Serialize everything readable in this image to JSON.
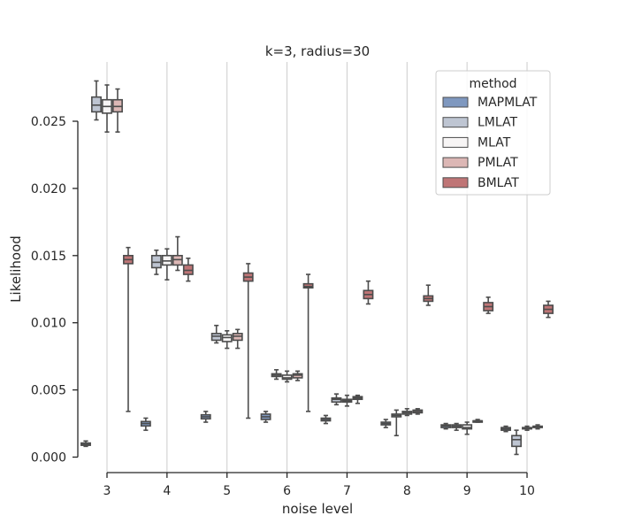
{
  "chart_data": {
    "type": "box",
    "title": "k=3, radius=30",
    "xlabel": "noise level",
    "ylabel": "Likelihood",
    "categories": [
      "3",
      "4",
      "5",
      "6",
      "7",
      "8",
      "9",
      "10"
    ],
    "y_ticks": [
      0.0,
      0.005,
      0.01,
      0.015,
      0.02,
      0.025
    ],
    "y_tick_labels": [
      "0.000",
      "0.005",
      "0.010",
      "0.015",
      "0.020",
      "0.025"
    ],
    "ylim": [
      -0.0012,
      0.0293
    ],
    "grid": "vertical",
    "legend": {
      "title": "method",
      "placement": "top-right"
    },
    "series": [
      {
        "name": "MAPMLAT",
        "color": "#7f98bf",
        "boxes": [
          {
            "min": 0.0008,
            "q1": 0.00088,
            "median": 0.00095,
            "q3": 0.00105,
            "max": 0.0012
          },
          {
            "min": 0.002,
            "q1": 0.00232,
            "median": 0.0025,
            "q3": 0.00265,
            "max": 0.0029
          },
          {
            "min": 0.0026,
            "q1": 0.00285,
            "median": 0.003,
            "q3": 0.00315,
            "max": 0.0034
          },
          {
            "min": 0.0026,
            "q1": 0.0028,
            "median": 0.003,
            "q3": 0.0032,
            "max": 0.0034
          },
          {
            "min": 0.0025,
            "q1": 0.0027,
            "median": 0.0028,
            "q3": 0.0029,
            "max": 0.0031
          },
          {
            "min": 0.0022,
            "q1": 0.0024,
            "median": 0.0025,
            "q3": 0.0026,
            "max": 0.0028
          },
          {
            "min": 0.0021,
            "q1": 0.0022,
            "median": 0.00232,
            "q3": 0.0024,
            "max": 0.0025
          },
          {
            "min": 0.0019,
            "q1": 0.002,
            "median": 0.0021,
            "q3": 0.0022,
            "max": 0.0023
          }
        ]
      },
      {
        "name": "LMLAT",
        "color": "#bec5d2",
        "boxes": [
          {
            "min": 0.0251,
            "q1": 0.0257,
            "median": 0.0262,
            "q3": 0.0268,
            "max": 0.028
          },
          {
            "min": 0.0136,
            "q1": 0.0141,
            "median": 0.0145,
            "q3": 0.015,
            "max": 0.0154
          },
          {
            "min": 0.0085,
            "q1": 0.0087,
            "median": 0.009,
            "q3": 0.0092,
            "max": 0.0098
          },
          {
            "min": 0.0058,
            "q1": 0.006,
            "median": 0.0061,
            "q3": 0.0062,
            "max": 0.0065
          },
          {
            "min": 0.0039,
            "q1": 0.0041,
            "median": 0.0043,
            "q3": 0.0044,
            "max": 0.0047
          },
          {
            "min": 0.0016,
            "q1": 0.003,
            "median": 0.0031,
            "q3": 0.0032,
            "max": 0.0035
          },
          {
            "min": 0.002,
            "q1": 0.0022,
            "median": 0.0023,
            "q3": 0.0024,
            "max": 0.0025
          },
          {
            "min": 0.0002,
            "q1": 0.0008,
            "median": 0.0013,
            "q3": 0.0016,
            "max": 0.002
          }
        ]
      },
      {
        "name": "MLAT",
        "color": "#f7f5f5",
        "boxes": [
          {
            "min": 0.0242,
            "q1": 0.0256,
            "median": 0.0261,
            "q3": 0.0266,
            "max": 0.0277
          },
          {
            "min": 0.0132,
            "q1": 0.0143,
            "median": 0.0146,
            "q3": 0.015,
            "max": 0.0155
          },
          {
            "min": 0.0081,
            "q1": 0.0086,
            "median": 0.0089,
            "q3": 0.0091,
            "max": 0.0094
          },
          {
            "min": 0.0056,
            "q1": 0.0058,
            "median": 0.0059,
            "q3": 0.0061,
            "max": 0.0064
          },
          {
            "min": 0.0038,
            "q1": 0.0041,
            "median": 0.0042,
            "q3": 0.0043,
            "max": 0.0046
          },
          {
            "min": 0.0031,
            "q1": 0.0032,
            "median": 0.0033,
            "q3": 0.0034,
            "max": 0.0036
          },
          {
            "min": 0.0017,
            "q1": 0.0021,
            "median": 0.0022,
            "q3": 0.0024,
            "max": 0.0026
          },
          {
            "min": 0.002,
            "q1": 0.0021,
            "median": 0.00215,
            "q3": 0.0022,
            "max": 0.0023
          }
        ]
      },
      {
        "name": "PMLAT",
        "color": "#dcb7b5",
        "boxes": [
          {
            "min": 0.0242,
            "q1": 0.0257,
            "median": 0.0261,
            "q3": 0.0266,
            "max": 0.0274
          },
          {
            "min": 0.0139,
            "q1": 0.0143,
            "median": 0.0147,
            "q3": 0.015,
            "max": 0.0164
          },
          {
            "min": 0.0081,
            "q1": 0.0087,
            "median": 0.009,
            "q3": 0.0092,
            "max": 0.0095
          },
          {
            "min": 0.0057,
            "q1": 0.0059,
            "median": 0.0061,
            "q3": 0.0062,
            "max": 0.0064
          },
          {
            "min": 0.004,
            "q1": 0.0043,
            "median": 0.0044,
            "q3": 0.0045,
            "max": 0.0046
          },
          {
            "min": 0.0032,
            "q1": 0.0033,
            "median": 0.0034,
            "q3": 0.0035,
            "max": 0.0036
          },
          {
            "min": 0.0026,
            "q1": 0.0026,
            "median": 0.0027,
            "q3": 0.0027,
            "max": 0.0028
          },
          {
            "min": 0.0021,
            "q1": 0.0022,
            "median": 0.00223,
            "q3": 0.0023,
            "max": 0.0024
          }
        ]
      },
      {
        "name": "BMLAT",
        "color": "#bf7576",
        "boxes": [
          {
            "min": 0.0034,
            "q1": 0.0144,
            "median": 0.0147,
            "q3": 0.015,
            "max": 0.0156
          },
          {
            "min": 0.0131,
            "q1": 0.0136,
            "median": 0.0139,
            "q3": 0.0143,
            "max": 0.0148
          },
          {
            "min": 0.0029,
            "q1": 0.0131,
            "median": 0.0134,
            "q3": 0.0137,
            "max": 0.0144
          },
          {
            "min": 0.0034,
            "q1": 0.0126,
            "median": 0.0127,
            "q3": 0.0129,
            "max": 0.0136
          },
          {
            "min": 0.0114,
            "q1": 0.0118,
            "median": 0.0121,
            "q3": 0.0124,
            "max": 0.0131
          },
          {
            "min": 0.0113,
            "q1": 0.0116,
            "median": 0.0118,
            "q3": 0.012,
            "max": 0.0128
          },
          {
            "min": 0.0107,
            "q1": 0.0109,
            "median": 0.0112,
            "q3": 0.0115,
            "max": 0.0119
          },
          {
            "min": 0.0104,
            "q1": 0.0107,
            "median": 0.011,
            "q3": 0.0113,
            "max": 0.0116
          }
        ]
      }
    ]
  }
}
